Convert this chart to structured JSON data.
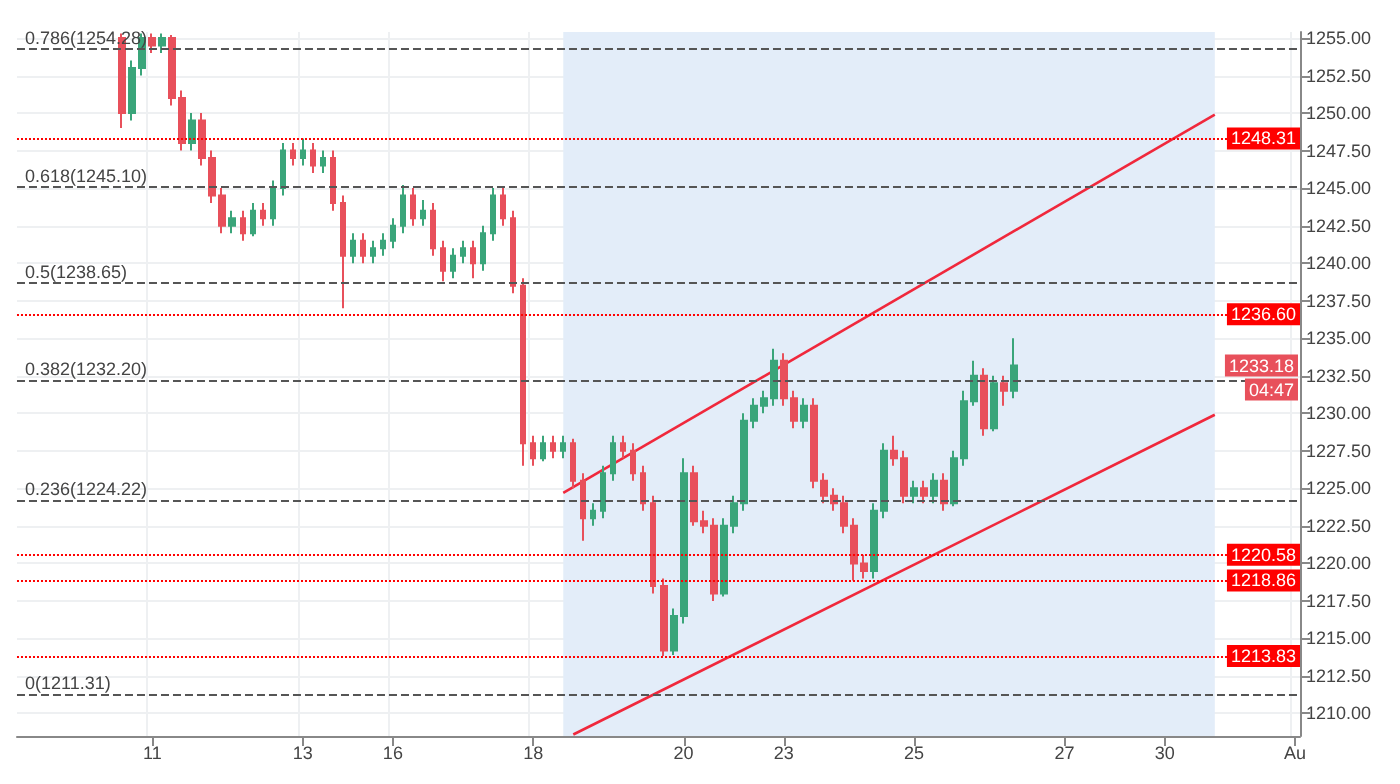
{
  "chart_data": {
    "type": "candlestick",
    "categories": [
      null,
      null,
      null,
      null,
      null,
      null,
      null,
      null,
      null,
      null,
      null,
      null,
      null,
      "11",
      null,
      null,
      null,
      null,
      null,
      null,
      null,
      null,
      null,
      null,
      null,
      null,
      null,
      null,
      "13",
      null,
      null,
      null,
      null,
      null,
      null,
      null,
      null,
      "16",
      null,
      null,
      null,
      null,
      null,
      null,
      null,
      null,
      null,
      null,
      null,
      null,
      null,
      "18",
      null,
      null,
      null,
      null,
      null,
      null,
      null,
      null,
      null,
      null,
      null,
      null,
      null,
      null,
      "20",
      null,
      null,
      null,
      null,
      null,
      null,
      null,
      null,
      null,
      "23",
      null,
      null,
      null,
      null,
      null,
      null,
      null,
      null,
      null,
      null,
      null,
      null,
      "25",
      null,
      null,
      null,
      null,
      null,
      null,
      null,
      null,
      null,
      null,
      null,
      null,
      null,
      null,
      "27",
      null,
      null,
      null,
      null,
      null,
      null,
      null,
      null,
      null,
      "30",
      null,
      null,
      null,
      null,
      null,
      null,
      null,
      null,
      null,
      null,
      null,
      null,
      "Au"
    ],
    "ohlc": [
      null,
      null,
      null,
      null,
      null,
      null,
      null,
      null,
      null,
      null,
      [
        1255,
        1255.3,
        1249,
        1250
      ],
      [
        1250,
        1253.5,
        1249.5,
        1253
      ],
      [
        1253,
        1255.3,
        1252.5,
        1255
      ],
      [
        1255,
        1255.3,
        1254,
        1254.5
      ],
      [
        1254.5,
        1255.3,
        1254,
        1255
      ],
      [
        1255,
        1255.2,
        1250.5,
        1251
      ],
      [
        1251,
        1251.5,
        1247.5,
        1248
      ],
      [
        1248,
        1250,
        1247.5,
        1249.5
      ],
      [
        1249.5,
        1250,
        1246.5,
        1247
      ],
      [
        1247,
        1247.5,
        1244,
        1244.5
      ],
      [
        1244.5,
        1245,
        1242,
        1242.5
      ],
      [
        1242.5,
        1243.5,
        1242,
        1243
      ],
      [
        1243,
        1243.5,
        1241.5,
        1242
      ],
      [
        1242,
        1244,
        1241.8,
        1243.5
      ],
      [
        1243.5,
        1244,
        1242.5,
        1243
      ],
      [
        1243,
        1245.5,
        1242.5,
        1245
      ],
      [
        1245,
        1248,
        1244.5,
        1247.5
      ],
      [
        1247.5,
        1248,
        1246.5,
        1247
      ],
      [
        1247,
        1248.3,
        1246.5,
        1247.5
      ],
      [
        1247.5,
        1248,
        1246,
        1246.5
      ],
      [
        1246.5,
        1247.5,
        1246,
        1247
      ],
      [
        1247,
        1247.5,
        1243.5,
        1244
      ],
      [
        1244,
        1244.5,
        1237,
        1240.5
      ],
      [
        1240.5,
        1242,
        1240,
        1241.5
      ],
      [
        1241.5,
        1242,
        1240,
        1240.5
      ],
      [
        1240.5,
        1241.5,
        1240,
        1241
      ],
      [
        1241,
        1242,
        1240.5,
        1241.5
      ],
      [
        1241.5,
        1243,
        1241,
        1242.5
      ],
      [
        1242.5,
        1245.2,
        1242,
        1244.5
      ],
      [
        1244.5,
        1245,
        1242.5,
        1243
      ],
      [
        1243,
        1244.2,
        1242.5,
        1243.5
      ],
      [
        1243.5,
        1244,
        1240.5,
        1241
      ],
      [
        1241,
        1241.5,
        1238.8,
        1239.5
      ],
      [
        1239.5,
        1241,
        1239,
        1240.5
      ],
      [
        1240.5,
        1241.5,
        1240,
        1241
      ],
      [
        1241,
        1241.5,
        1239,
        1240
      ],
      [
        1240,
        1242.5,
        1239.5,
        1242
      ],
      [
        1242,
        1245,
        1241.5,
        1244.5
      ],
      [
        1244.5,
        1245,
        1242.5,
        1243
      ],
      [
        1243,
        1243.5,
        1238,
        1238.5
      ],
      [
        1238.5,
        1239,
        1226.5,
        1228
      ],
      [
        1228,
        1228.5,
        1226.5,
        1227
      ],
      [
        1227,
        1228.5,
        1226.8,
        1228
      ],
      [
        1228,
        1228.5,
        1227,
        1227.5
      ],
      [
        1227.5,
        1228.5,
        1227,
        1228
      ],
      [
        1228,
        1228.3,
        1225,
        1225.5
      ],
      [
        1225.5,
        1226,
        1221.5,
        1223
      ],
      [
        1223,
        1224,
        1222.5,
        1223.5
      ],
      [
        1223.5,
        1226.5,
        1223,
        1226
      ],
      [
        1226,
        1228.5,
        1225.5,
        1228
      ],
      [
        1228,
        1228.5,
        1227,
        1227.5
      ],
      [
        1227.5,
        1228,
        1225.5,
        1226
      ],
      [
        1226,
        1226.5,
        1223.5,
        1224
      ],
      [
        1224,
        1224.5,
        1218,
        1218.5
      ],
      [
        1218.5,
        1219,
        1213.83,
        1214.2
      ],
      [
        1214.2,
        1217,
        1213.9,
        1216.5
      ],
      [
        1216.5,
        1227,
        1216,
        1226
      ],
      [
        1226,
        1226.5,
        1222.5,
        1222.8
      ],
      [
        1222.8,
        1223.5,
        1222,
        1222.5
      ],
      [
        1222.5,
        1223,
        1217.5,
        1218
      ],
      [
        1218,
        1223,
        1217.8,
        1222.5
      ],
      [
        1222.5,
        1224.5,
        1222,
        1224
      ],
      [
        1224,
        1230,
        1223.5,
        1229.5
      ],
      [
        1229.5,
        1231,
        1229,
        1230.5
      ],
      [
        1230.5,
        1231.5,
        1230,
        1231
      ],
      [
        1231,
        1234.3,
        1230.5,
        1233.5
      ],
      [
        1233.5,
        1234,
        1230.5,
        1231
      ],
      [
        1231,
        1231.5,
        1229,
        1229.5
      ],
      [
        1229.5,
        1231,
        1229,
        1230.5
      ],
      [
        1230.5,
        1231,
        1225,
        1225.5
      ],
      [
        1225.5,
        1226,
        1224,
        1224.5
      ],
      [
        1224.5,
        1225,
        1223.5,
        1224
      ],
      [
        1224,
        1224.5,
        1222,
        1222.5
      ],
      [
        1222.5,
        1223,
        1218.86,
        1220
      ],
      [
        1220,
        1220.58,
        1219,
        1219.5
      ],
      [
        1219.5,
        1224,
        1219,
        1223.5
      ],
      [
        1223.5,
        1228,
        1223,
        1227.5
      ],
      [
        1227.5,
        1228.5,
        1226.5,
        1227
      ],
      [
        1227,
        1227.5,
        1224,
        1224.5
      ],
      [
        1224.5,
        1225.5,
        1224,
        1225
      ],
      [
        1225,
        1225.5,
        1224,
        1224.5
      ],
      [
        1224.5,
        1226,
        1224,
        1225.5
      ],
      [
        1225.5,
        1226,
        1223.5,
        1224
      ],
      [
        1224,
        1227.5,
        1223.8,
        1227
      ],
      [
        1227,
        1231.5,
        1226.5,
        1230.8
      ],
      [
        1230.8,
        1233.5,
        1230.5,
        1232.5
      ],
      [
        1232.5,
        1233,
        1228.5,
        1229
      ],
      [
        1229,
        1232.5,
        1228.8,
        1232
      ],
      [
        1232,
        1232.5,
        1230.5,
        1231.5
      ],
      [
        1231.5,
        1235,
        1231,
        1233.18
      ],
      null,
      null,
      null,
      null,
      null,
      null,
      null,
      null,
      null,
      null,
      null,
      null,
      null,
      null,
      null,
      null,
      null,
      null,
      null,
      null,
      null,
      null,
      null,
      null,
      null,
      null,
      null,
      null
    ],
    "series": [
      {
        "type": "line",
        "color": "#f0283c",
        "values": [
          null,
          null,
          null,
          null,
          null,
          null,
          null,
          null,
          null,
          null,
          null,
          null,
          null,
          null,
          null,
          null,
          null,
          null,
          null,
          null,
          null,
          null,
          null,
          null,
          null,
          null,
          null,
          null,
          null,
          null,
          null,
          null,
          null,
          null,
          null,
          null,
          null,
          null,
          null,
          null,
          null,
          null,
          null,
          null,
          null,
          null,
          null,
          null,
          null,
          null,
          null,
          null,
          null,
          null,
          1224.7,
          null,
          null,
          null,
          null,
          null,
          null,
          null,
          null,
          null,
          null,
          null,
          null,
          null,
          null,
          null,
          null,
          null,
          null,
          null,
          null,
          null,
          null,
          null,
          null,
          null,
          null,
          null,
          null,
          null,
          null,
          null,
          null,
          null,
          null,
          null,
          null,
          null,
          null,
          null,
          null,
          null,
          null,
          null,
          null,
          null,
          null,
          null,
          null,
          null,
          null,
          null,
          null,
          null,
          null,
          null,
          null,
          null,
          null,
          null,
          null,
          null,
          null,
          null,
          null,
          1249.9,
          null,
          null,
          null,
          null,
          null,
          null,
          null,
          null
        ]
      },
      {
        "type": "line",
        "color": "#f0283c",
        "values": [
          null,
          null,
          null,
          null,
          null,
          null,
          null,
          null,
          null,
          null,
          null,
          null,
          null,
          null,
          null,
          null,
          null,
          null,
          null,
          null,
          null,
          null,
          null,
          null,
          null,
          null,
          null,
          null,
          null,
          null,
          null,
          null,
          null,
          null,
          null,
          null,
          null,
          null,
          null,
          null,
          null,
          null,
          null,
          null,
          null,
          null,
          null,
          null,
          null,
          null,
          null,
          null,
          null,
          null,
          null,
          1208.6,
          null,
          null,
          null,
          null,
          null,
          null,
          null,
          null,
          null,
          null,
          null,
          null,
          null,
          null,
          null,
          null,
          null,
          null,
          null,
          null,
          null,
          null,
          null,
          null,
          null,
          null,
          null,
          null,
          null,
          null,
          null,
          null,
          null,
          null,
          null,
          null,
          null,
          null,
          null,
          null,
          null,
          null,
          null,
          null,
          null,
          null,
          null,
          null,
          null,
          null,
          null,
          null,
          null,
          null,
          null,
          null,
          null,
          null,
          null,
          null,
          null,
          null,
          null,
          1229.9,
          null,
          null,
          null,
          null,
          null,
          null,
          null,
          null
        ]
      }
    ],
    "ylim": [
      1208.5,
      1255.4
    ],
    "yticks": [
      {
        "value": 1210,
        "label": "1210.00"
      },
      {
        "value": 1212.5,
        "label": "1212.50"
      },
      {
        "value": 1215,
        "label": "1215.00"
      },
      {
        "value": 1217.5,
        "label": "1217.50"
      },
      {
        "value": 1220,
        "label": "1220.00"
      },
      {
        "value": 1222.5,
        "label": "1222.50"
      },
      {
        "value": 1225,
        "label": "1225.00"
      },
      {
        "value": 1227.5,
        "label": "1227.50"
      },
      {
        "value": 1230,
        "label": "1230.00"
      },
      {
        "value": 1232.5,
        "label": "1232.50"
      },
      {
        "value": 1235,
        "label": "1235.00"
      },
      {
        "value": 1237.5,
        "label": "1237.50"
      },
      {
        "value": 1240,
        "label": "1240.00"
      },
      {
        "value": 1242.5,
        "label": "1242.50"
      },
      {
        "value": 1245,
        "label": "1245.00"
      },
      {
        "value": 1247.5,
        "label": "1247.50"
      },
      {
        "value": 1250,
        "label": "1250.00"
      },
      {
        "value": 1252.5,
        "label": "1252.50"
      },
      {
        "value": 1255,
        "label": "1255.00"
      }
    ],
    "grid": true,
    "ref_lines": [
      {
        "axis": "y",
        "value": 1254.28,
        "label": "0.786(1254.28)",
        "color": "#555555",
        "line_style": "dashed"
      },
      {
        "axis": "y",
        "value": 1245.1,
        "label": "0.618(1245.10)",
        "color": "#555555",
        "line_style": "dashed"
      },
      {
        "axis": "y",
        "value": 1238.65,
        "label": "0.5(1238.65)",
        "color": "#555555",
        "line_style": "dashed"
      },
      {
        "axis": "y",
        "value": 1232.2,
        "label": "0.382(1232.20)",
        "color": "#555555",
        "line_style": "dashed"
      },
      {
        "axis": "y",
        "value": 1224.22,
        "label": "0.236(1224.22)",
        "color": "#555555",
        "line_style": "dashed"
      },
      {
        "axis": "y",
        "value": 1211.31,
        "label": "0(1211.31)",
        "color": "#555555",
        "line_style": "dashed"
      },
      {
        "axis": "y",
        "value": 1248.31,
        "label": "1248.31",
        "color": "#ff0000",
        "line_style": "dotted"
      },
      {
        "axis": "y",
        "value": 1236.6,
        "label": "1236.60",
        "color": "#ff0000",
        "line_style": "dotted"
      },
      {
        "axis": "y",
        "value": 1220.58,
        "label": "1220.58",
        "color": "#ff0000",
        "line_style": "dotted"
      },
      {
        "axis": "y",
        "value": 1218.86,
        "label": "1218.86",
        "color": "#ff0000",
        "line_style": "dotted"
      },
      {
        "axis": "y",
        "value": 1213.83,
        "label": "1213.83",
        "color": "#ff0000",
        "line_style": "dotted"
      }
    ],
    "annotations": [
      {
        "text": "1233.18",
        "y": 1233.18
      },
      "04:47"
    ]
  }
}
